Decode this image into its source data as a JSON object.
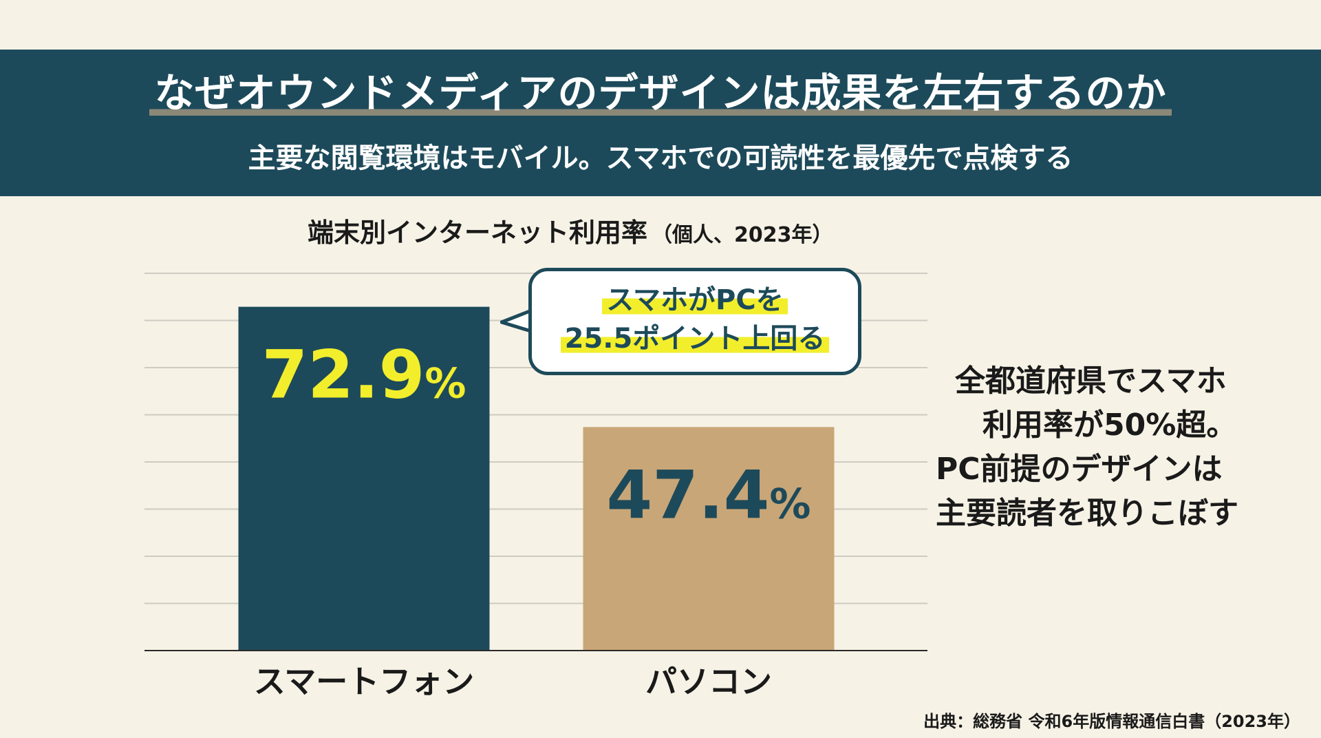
{
  "header": {
    "title": "なぜオウンドメディアのデザインは成果を左右するのか",
    "subtitle": "主要な閲覧環境はモバイル。スマホでの可読性を最優先で点検する"
  },
  "chart_data": {
    "type": "bar",
    "title": "端末別インターネット利用率",
    "title_note": "（個人、2023年）",
    "categories": [
      "スマートフォン",
      "パソコン"
    ],
    "values": [
      72.9,
      47.4
    ],
    "value_labels": [
      "72.9",
      "47.4"
    ],
    "value_suffix": "%",
    "ylim": [
      0,
      80
    ],
    "grid": true,
    "xlabel": "",
    "ylabel": "",
    "colors": [
      "#1d4a5a",
      "#c9a677"
    ],
    "value_label_colors": [
      "#f2ee2c",
      "#1d4a5a"
    ]
  },
  "callout": {
    "line1": "スマホがPCを",
    "line2": "25.5ポイント上回る"
  },
  "side_note": {
    "lines": [
      "全都道府県でスマホ",
      "利用率が50%超。",
      "PC前提のデザインは",
      "主要読者を取りこぼす"
    ]
  },
  "source": "出典：総務省 令和6年版情報通信白書（2023年）",
  "colors": {
    "banner": "#1d4a5a",
    "background": "#f6f2e6",
    "highlight": "#f2ee2c"
  }
}
